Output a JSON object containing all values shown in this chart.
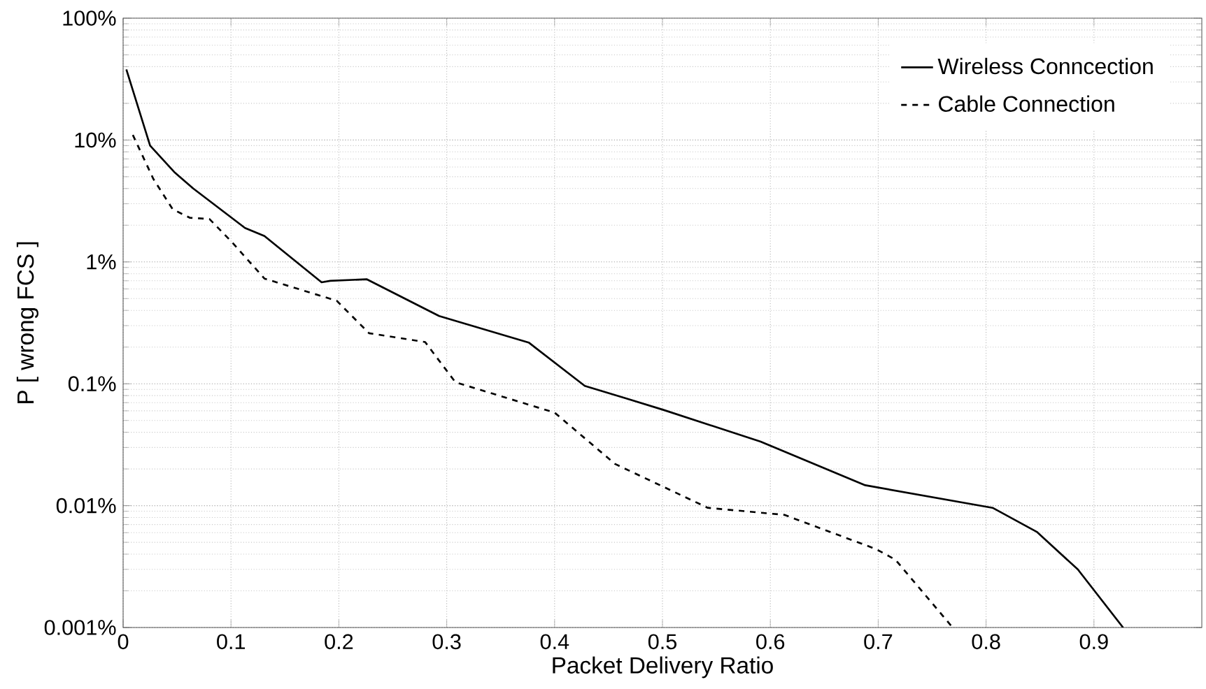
{
  "chart_data": {
    "type": "line",
    "xlabel": "Packet Delivery Ratio",
    "ylabel": "P [ wrong FCS ]",
    "xlim": [
      0,
      1
    ],
    "xticks": [
      0,
      0.1,
      0.2,
      0.3,
      0.4,
      0.5,
      0.6,
      0.7,
      0.8,
      0.9
    ],
    "ylim": [
      0.001,
      100
    ],
    "yticks": [
      {
        "value": 0.001,
        "label": "0.001%"
      },
      {
        "value": 0.01,
        "label": "0.01%"
      },
      {
        "value": 0.1,
        "label": "0.1%"
      },
      {
        "value": 1,
        "label": "1%"
      },
      {
        "value": 10,
        "label": "10%"
      },
      {
        "value": 100,
        "label": "100%"
      }
    ],
    "log": "y",
    "grid": true,
    "legend": "top right",
    "series": [
      {
        "name": "Wireless Conncection",
        "color": "#000000",
        "line_style": "solid",
        "x": [
          0.003,
          0.025,
          0.048,
          0.065,
          0.113,
          0.131,
          0.184,
          0.192,
          0.226,
          0.293,
          0.376,
          0.428,
          0.466,
          0.501,
          0.591,
          0.688,
          0.806,
          0.847,
          0.885,
          0.927
        ],
        "values": [
          38,
          9.0,
          5.4,
          4.0,
          1.9,
          1.63,
          0.68,
          0.7,
          0.72,
          0.36,
          0.218,
          0.096,
          0.076,
          0.061,
          0.0335,
          0.0147,
          0.0096,
          0.0061,
          0.003,
          0.001
        ]
      },
      {
        "name": "Cable Connection",
        "color": "#000000",
        "line_style": "dashed",
        "x": [
          0.009,
          0.028,
          0.046,
          0.062,
          0.08,
          0.101,
          0.131,
          0.198,
          0.228,
          0.28,
          0.308,
          0.4,
          0.456,
          0.542,
          0.613,
          0.698,
          0.716,
          0.769
        ],
        "values": [
          11,
          4.8,
          2.7,
          2.3,
          2.25,
          1.45,
          0.73,
          0.48,
          0.26,
          0.22,
          0.103,
          0.058,
          0.022,
          0.0096,
          0.0084,
          0.0044,
          0.0036,
          0.001
        ]
      }
    ]
  }
}
